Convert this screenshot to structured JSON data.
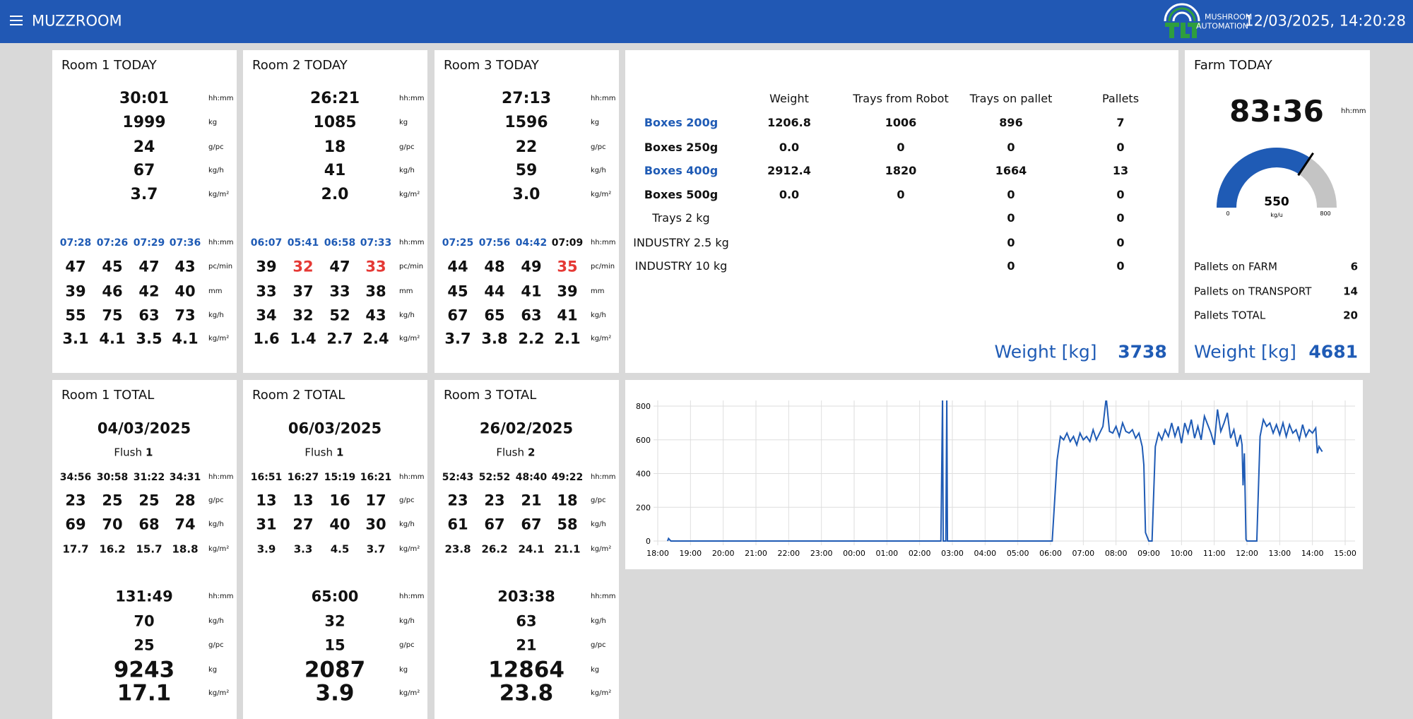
{
  "header": {
    "title": "MUZZROOM",
    "brand": [
      "MUSHROOM",
      "AUTOMATION"
    ],
    "datetime": "12/03/2025, 14:20:28"
  },
  "rooms_today": [
    {
      "title": "Room 1 TODAY",
      "summary": [
        {
          "value": "30:01",
          "unit": "hh:mm"
        },
        {
          "value": "1999",
          "unit": "kg"
        },
        {
          "value": "24",
          "unit": "g/pc"
        },
        {
          "value": "67",
          "unit": "kg/h"
        },
        {
          "value": "3.7",
          "unit": "kg/m²"
        }
      ],
      "times": {
        "values": [
          "07:28",
          "07:26",
          "07:29",
          "07:36"
        ],
        "unit": "hh:mm",
        "color": "#1f5bb5"
      },
      "rows": [
        {
          "values": [
            "47",
            "45",
            "47",
            "43"
          ],
          "unit": "pc/min"
        },
        {
          "values": [
            "39",
            "46",
            "42",
            "40"
          ],
          "unit": "mm"
        },
        {
          "values": [
            "55",
            "75",
            "63",
            "73"
          ],
          "unit": "kg/h"
        },
        {
          "values": [
            "3.1",
            "4.1",
            "3.5",
            "4.1"
          ],
          "unit": "kg/m²"
        }
      ]
    },
    {
      "title": "Room 2 TODAY",
      "summary": [
        {
          "value": "26:21",
          "unit": "hh:mm"
        },
        {
          "value": "1085",
          "unit": "kg"
        },
        {
          "value": "18",
          "unit": "g/pc"
        },
        {
          "value": "41",
          "unit": "kg/h"
        },
        {
          "value": "2.0",
          "unit": "kg/m²"
        }
      ],
      "times": {
        "values": [
          "06:07",
          "05:41",
          "06:58",
          "07:33"
        ],
        "unit": "hh:mm",
        "color": "#1f5bb5"
      },
      "rows": [
        {
          "values": [
            "39",
            "32",
            "47",
            "33"
          ],
          "unit": "pc/min",
          "colors": [
            "#111111",
            "#e53935",
            "#111111",
            "#e53935"
          ]
        },
        {
          "values": [
            "33",
            "37",
            "33",
            "38"
          ],
          "unit": "mm"
        },
        {
          "values": [
            "34",
            "32",
            "52",
            "43"
          ],
          "unit": "kg/h"
        },
        {
          "values": [
            "1.6",
            "1.4",
            "2.7",
            "2.4"
          ],
          "unit": "kg/m²"
        }
      ]
    },
    {
      "title": "Room 3 TODAY",
      "summary": [
        {
          "value": "27:13",
          "unit": "hh:mm"
        },
        {
          "value": "1596",
          "unit": "kg"
        },
        {
          "value": "22",
          "unit": "g/pc"
        },
        {
          "value": "59",
          "unit": "kg/h"
        },
        {
          "value": "3.0",
          "unit": "kg/m²"
        }
      ],
      "times": {
        "values": [
          "07:25",
          "07:56",
          "04:42",
          "07:09"
        ],
        "unit": "hh:mm",
        "color": "#1f5bb5",
        "colors": [
          "#1f5bb5",
          "#1f5bb5",
          "#1f5bb5",
          "#111111"
        ]
      },
      "rows": [
        {
          "values": [
            "44",
            "48",
            "49",
            "35"
          ],
          "unit": "pc/min",
          "colors": [
            "#111111",
            "#111111",
            "#111111",
            "#e53935"
          ]
        },
        {
          "values": [
            "45",
            "44",
            "41",
            "39"
          ],
          "unit": "mm"
        },
        {
          "values": [
            "67",
            "65",
            "63",
            "41"
          ],
          "unit": "kg/h"
        },
        {
          "values": [
            "3.7",
            "3.8",
            "2.2",
            "2.1"
          ],
          "unit": "kg/m²"
        }
      ]
    }
  ],
  "rooms_total": [
    {
      "title": "Room 1 TOTAL",
      "date": "04/03/2025",
      "flush": {
        "label": "Flush",
        "value": "1"
      },
      "times": {
        "values": [
          "34:56",
          "30:58",
          "31:22",
          "34:31"
        ],
        "unit": "hh:mm"
      },
      "rows": [
        {
          "values": [
            "23",
            "25",
            "25",
            "28"
          ],
          "unit": "g/pc"
        },
        {
          "values": [
            "69",
            "70",
            "68",
            "74"
          ],
          "unit": "kg/h"
        },
        {
          "values": [
            "17.7",
            "16.2",
            "15.7",
            "18.8"
          ],
          "unit": "kg/m²"
        }
      ],
      "totals": [
        {
          "value": "131:49",
          "unit": "hh:mm"
        },
        {
          "value": "70",
          "unit": "kg/h"
        },
        {
          "value": "25",
          "unit": "g/pc"
        },
        {
          "value": "9243",
          "unit": "kg",
          "big": true
        },
        {
          "value": "17.1",
          "unit": "kg/m²",
          "big": true
        }
      ]
    },
    {
      "title": "Room 2 TOTAL",
      "date": "06/03/2025",
      "flush": {
        "label": "Flush",
        "value": "1"
      },
      "times": {
        "values": [
          "16:51",
          "16:27",
          "15:19",
          "16:21"
        ],
        "unit": "hh:mm"
      },
      "rows": [
        {
          "values": [
            "13",
            "13",
            "16",
            "17"
          ],
          "unit": "g/pc"
        },
        {
          "values": [
            "31",
            "27",
            "40",
            "30"
          ],
          "unit": "kg/h"
        },
        {
          "values": [
            "3.9",
            "3.3",
            "4.5",
            "3.7"
          ],
          "unit": "kg/m²"
        }
      ],
      "totals": [
        {
          "value": "65:00",
          "unit": "hh:mm"
        },
        {
          "value": "32",
          "unit": "kg/h"
        },
        {
          "value": "15",
          "unit": "g/pc"
        },
        {
          "value": "2087",
          "unit": "kg",
          "big": true
        },
        {
          "value": "3.9",
          "unit": "kg/m²",
          "big": true
        }
      ]
    },
    {
      "title": "Room 3 TOTAL",
      "date": "26/02/2025",
      "flush": {
        "label": "Flush",
        "value": "2"
      },
      "times": {
        "values": [
          "52:43",
          "52:52",
          "48:40",
          "49:22"
        ],
        "unit": "hh:mm"
      },
      "rows": [
        {
          "values": [
            "23",
            "23",
            "21",
            "18"
          ],
          "unit": "g/pc"
        },
        {
          "values": [
            "61",
            "67",
            "67",
            "58"
          ],
          "unit": "kg/h"
        },
        {
          "values": [
            "23.8",
            "26.2",
            "24.1",
            "21.1"
          ],
          "unit": "kg/m²"
        }
      ],
      "totals": [
        {
          "value": "203:38",
          "unit": "hh:mm"
        },
        {
          "value": "63",
          "unit": "kg/h"
        },
        {
          "value": "21",
          "unit": "g/pc"
        },
        {
          "value": "12864",
          "unit": "kg",
          "big": true
        },
        {
          "value": "23.8",
          "unit": "kg/m²",
          "big": true
        }
      ]
    }
  ],
  "boxes": {
    "columns": [
      "Weight",
      "Trays from Robot",
      "Trays on pallet",
      "Pallets"
    ],
    "rows": [
      {
        "label": "Boxes 200g",
        "color": "#1f5bb5",
        "bold": true,
        "cells": [
          "1206.8",
          "1006",
          "896",
          "7"
        ]
      },
      {
        "label": "Boxes 250g",
        "bold": true,
        "cells": [
          "0.0",
          "0",
          "0",
          "0"
        ]
      },
      {
        "label": "Boxes 400g",
        "color": "#1f5bb5",
        "bold": true,
        "cells": [
          "2912.4",
          "1820",
          "1664",
          "13"
        ]
      },
      {
        "label": "Boxes 500g",
        "bold": true,
        "cells": [
          "0.0",
          "0",
          "0",
          "0"
        ]
      },
      {
        "label": "Trays 2 kg",
        "cells": [
          null,
          null,
          "0",
          "0"
        ]
      },
      {
        "label": "INDUSTRY 2.5 kg",
        "cells": [
          null,
          null,
          "0",
          "0"
        ]
      },
      {
        "label": "INDUSTRY 10 kg",
        "cells": [
          null,
          null,
          "0",
          "0"
        ]
      }
    ],
    "footer": {
      "label": "Weight [kg]",
      "value": "3738"
    }
  },
  "farm": {
    "title": "Farm TODAY",
    "time": {
      "value": "83:36",
      "unit": "hh:mm"
    },
    "gauge": {
      "value": 550,
      "min": 0,
      "max": 800,
      "unit": "kg/u"
    },
    "stats": [
      {
        "label": "Pallets on FARM",
        "value": "6"
      },
      {
        "label": "Pallets on TRANSPORT",
        "value": "14"
      },
      {
        "label": "Pallets TOTAL",
        "value": "20"
      }
    ],
    "footer": {
      "label": "Weight [kg]",
      "value": "4681"
    }
  },
  "chart_data": {
    "type": "line",
    "color": "#1f5bb5",
    "grid": true,
    "x": [
      18.3,
      18.33,
      18.4,
      26.65,
      26.7,
      26.72,
      26.8,
      26.83,
      26.85,
      30.05,
      30.2,
      30.3,
      30.4,
      30.5,
      30.6,
      30.7,
      30.8,
      30.9,
      31.0,
      31.1,
      31.2,
      31.3,
      31.4,
      31.5,
      31.6,
      31.7,
      31.8,
      31.9,
      32.0,
      32.1,
      32.2,
      32.3,
      32.4,
      32.5,
      32.6,
      32.7,
      32.8,
      32.85,
      32.9,
      33.0,
      33.1,
      33.2,
      33.3,
      33.4,
      33.5,
      33.6,
      33.7,
      33.8,
      33.9,
      34.0,
      34.1,
      34.2,
      34.3,
      34.4,
      34.5,
      34.6,
      34.7,
      34.8,
      34.9,
      35.0,
      35.1,
      35.2,
      35.3,
      35.4,
      35.5,
      35.6,
      35.7,
      35.8,
      35.85,
      35.88,
      35.92,
      35.97,
      36.0,
      36.3,
      36.4,
      36.5,
      36.6,
      36.7,
      36.8,
      36.9,
      37.0,
      37.1,
      37.2,
      37.3,
      37.4,
      37.5,
      37.6,
      37.7,
      37.8,
      37.9,
      38.0,
      38.1,
      38.15,
      38.2,
      38.3
    ],
    "values": [
      0,
      15,
      0,
      0,
      850,
      0,
      0,
      850,
      0,
      0,
      480,
      620,
      600,
      640,
      590,
      620,
      570,
      640,
      600,
      620,
      590,
      660,
      600,
      640,
      680,
      850,
      650,
      640,
      680,
      620,
      700,
      650,
      640,
      660,
      610,
      640,
      560,
      450,
      50,
      0,
      0,
      560,
      640,
      600,
      660,
      620,
      700,
      620,
      680,
      580,
      700,
      640,
      720,
      610,
      680,
      600,
      740,
      690,
      640,
      570,
      780,
      650,
      700,
      760,
      610,
      660,
      560,
      630,
      570,
      330,
      520,
      10,
      0,
      0,
      620,
      720,
      680,
      700,
      640,
      690,
      630,
      700,
      620,
      690,
      640,
      660,
      600,
      690,
      620,
      660,
      640,
      670,
      520,
      560,
      530
    ],
    "xlim": [
      18,
      39
    ],
    "xticks": [
      {
        "value": 18,
        "label": "18:00"
      },
      {
        "value": 19,
        "label": "19:00"
      },
      {
        "value": 20,
        "label": "20:00"
      },
      {
        "value": 21,
        "label": "21:00"
      },
      {
        "value": 22,
        "label": "22:00"
      },
      {
        "value": 23,
        "label": "23:00"
      },
      {
        "value": 24,
        "label": "00:00"
      },
      {
        "value": 25,
        "label": "01:00"
      },
      {
        "value": 26,
        "label": "02:00"
      },
      {
        "value": 27,
        "label": "03:00"
      },
      {
        "value": 28,
        "label": "04:00"
      },
      {
        "value": 29,
        "label": "05:00"
      },
      {
        "value": 30,
        "label": "06:00"
      },
      {
        "value": 31,
        "label": "07:00"
      },
      {
        "value": 32,
        "label": "08:00"
      },
      {
        "value": 33,
        "label": "09:00"
      },
      {
        "value": 34,
        "label": "10:00"
      },
      {
        "value": 35,
        "label": "11:00"
      },
      {
        "value": 36,
        "label": "12:00"
      },
      {
        "value": 37,
        "label": "13:00"
      },
      {
        "value": 38,
        "label": "14:00"
      },
      {
        "value": 39,
        "label": "15:00"
      }
    ],
    "ylim": [
      0,
      800
    ],
    "yticks": [
      0,
      200,
      400,
      600,
      800
    ]
  }
}
